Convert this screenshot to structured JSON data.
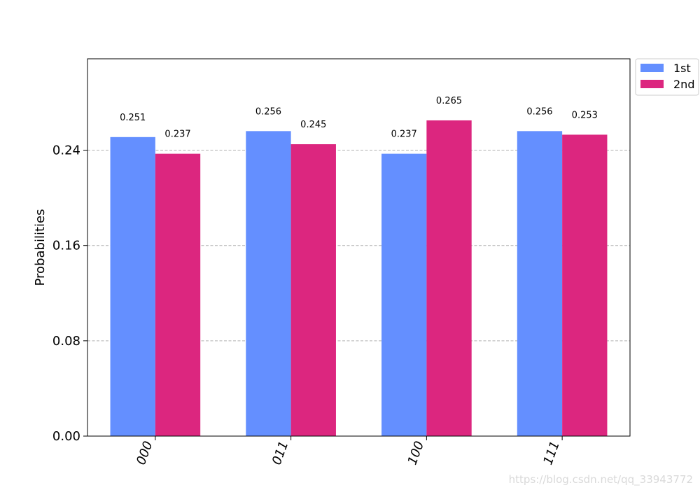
{
  "chart_data": {
    "type": "bar",
    "categories": [
      "000",
      "011",
      "100",
      "111"
    ],
    "series": [
      {
        "name": "1st",
        "values": [
          0.251,
          0.256,
          0.237,
          0.256
        ],
        "color": "#648fff"
      },
      {
        "name": "2nd",
        "values": [
          0.237,
          0.245,
          0.265,
          0.253
        ],
        "color": "#dc267f"
      }
    ],
    "value_labels": [
      [
        "0.251",
        "0.256",
        "0.237",
        "0.256"
      ],
      [
        "0.237",
        "0.245",
        "0.265",
        "0.253"
      ]
    ],
    "ylabel": "Probabilities",
    "xlabel": "",
    "ylim": [
      0,
      0.3167
    ],
    "yticks": [
      0.0,
      0.08,
      0.16,
      0.24
    ],
    "ytick_labels": [
      "0.00",
      "0.08",
      "0.16",
      "0.24"
    ],
    "grid": "y dashed",
    "legend_placement": "outside top-right",
    "xtick_rotation_deg": -70
  },
  "watermark": "https://blog.csdn.net/qq_33943772"
}
